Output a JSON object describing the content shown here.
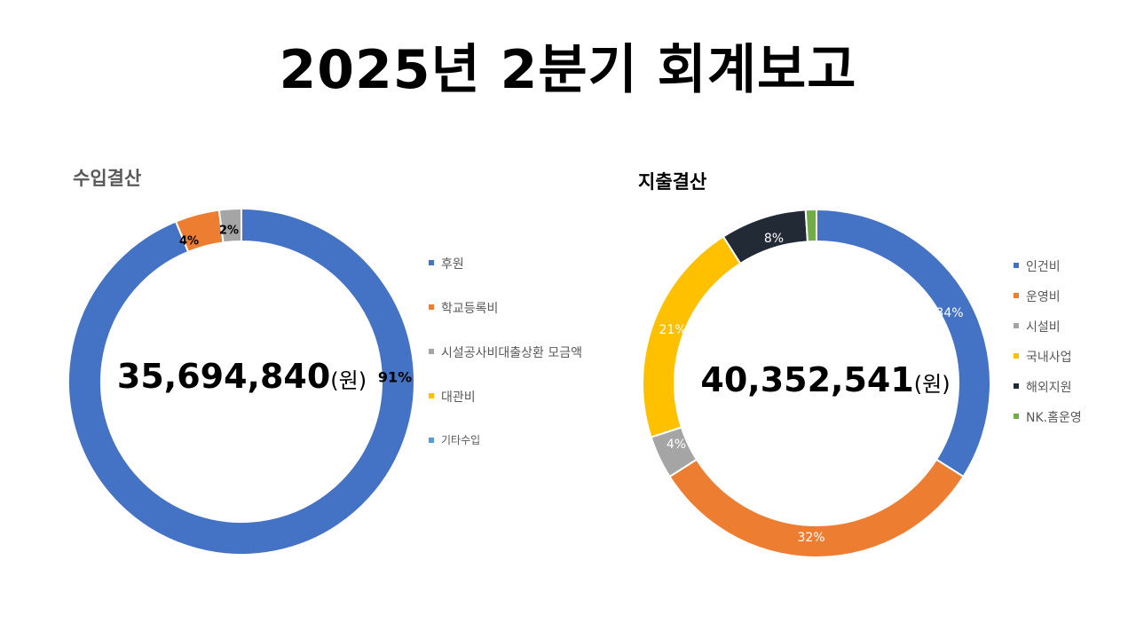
{
  "page": {
    "title": "2025년 2분기 회계보고"
  },
  "chart_data": [
    {
      "type": "pie",
      "title": "수입결산",
      "center_label": {
        "amount": "35,694,840",
        "unit": "(원)"
      },
      "categories": [
        "후원",
        "학교등록비",
        "시설공사비대출상환 모금액",
        "대관비",
        "기타수입"
      ],
      "values": [
        91,
        4,
        2,
        0,
        0
      ],
      "data_labels": [
        "91%",
        "4%",
        "2%",
        "",
        ""
      ],
      "colors": [
        "#4472C4",
        "#ED7D31",
        "#A5A5A5",
        "#FFC000",
        "#5B9BD5"
      ],
      "legend": "right"
    },
    {
      "type": "pie",
      "title": "지출결산",
      "center_label": {
        "amount": "40,352,541",
        "unit": "(원)"
      },
      "categories": [
        "인건비",
        "운영비",
        "시설비",
        "국내사업",
        "해외지원",
        "NK.홈운영"
      ],
      "values": [
        34,
        32,
        4,
        21,
        8,
        1
      ],
      "data_labels": [
        "34%",
        "32%",
        "4%",
        "21%",
        "8%",
        ""
      ],
      "colors": [
        "#4472C4",
        "#ED7D31",
        "#A5A5A5",
        "#FFC000",
        "#222A35",
        "#70AD47"
      ],
      "legend": "right"
    }
  ]
}
